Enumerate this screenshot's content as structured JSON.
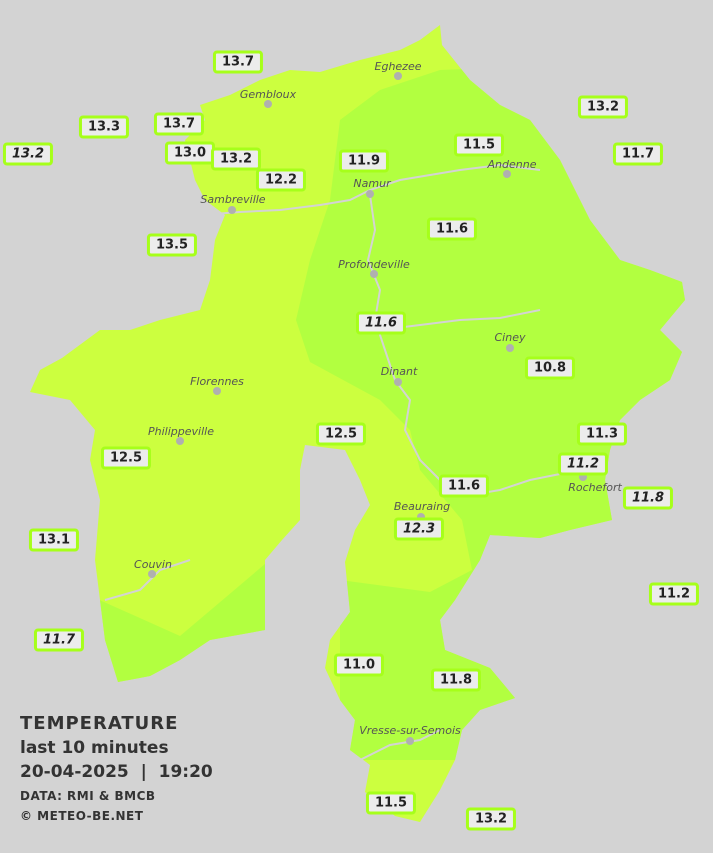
{
  "legend": {
    "title": "TEMPERATURE",
    "subtitle": "last 10 minutes",
    "datetime": "20-04-2025  |  19:20",
    "source": "DATA: RMI & BMCB",
    "copyright": "© METEO-BE.NET"
  },
  "colors": {
    "background": "#d3d3d3",
    "zone_warm": "#ccff3f",
    "zone_cool": "#b2ff40",
    "label_border": "#a6ff1a",
    "label_fill": "#ececec"
  },
  "cities": [
    "Eghezee",
    "Gembloux",
    "Andenne",
    "Namur",
    "Sambreville",
    "Profondeville",
    "Ciney",
    "Dinant",
    "Florennes",
    "Philippeville",
    "Rochefort",
    "Beauraing",
    "Couvin",
    "Vresse-sur-Semois"
  ],
  "stations": [
    {
      "value": "13.7",
      "italic": false
    },
    {
      "value": "13.3",
      "italic": false
    },
    {
      "value": "13.7",
      "italic": false
    },
    {
      "value": "13.2",
      "italic": true
    },
    {
      "value": "13.0",
      "italic": false
    },
    {
      "value": "13.2",
      "italic": false
    },
    {
      "value": "12.2",
      "italic": false
    },
    {
      "value": "11.9",
      "italic": false
    },
    {
      "value": "11.5",
      "italic": false
    },
    {
      "value": "13.2",
      "italic": false
    },
    {
      "value": "11.7",
      "italic": false
    },
    {
      "value": "13.5",
      "italic": false
    },
    {
      "value": "11.6",
      "italic": false
    },
    {
      "value": "11.6",
      "italic": true
    },
    {
      "value": "10.8",
      "italic": false
    },
    {
      "value": "12.5",
      "italic": false
    },
    {
      "value": "12.5",
      "italic": false
    },
    {
      "value": "11.3",
      "italic": false
    },
    {
      "value": "11.2",
      "italic": true
    },
    {
      "value": "11.6",
      "italic": false
    },
    {
      "value": "11.8",
      "italic": true
    },
    {
      "value": "12.3",
      "italic": true
    },
    {
      "value": "13.1",
      "italic": false
    },
    {
      "value": "11.2",
      "italic": false
    },
    {
      "value": "11.7",
      "italic": true
    },
    {
      "value": "11.0",
      "italic": false
    },
    {
      "value": "11.8",
      "italic": false
    },
    {
      "value": "11.5",
      "italic": false
    },
    {
      "value": "13.2",
      "italic": false
    }
  ]
}
